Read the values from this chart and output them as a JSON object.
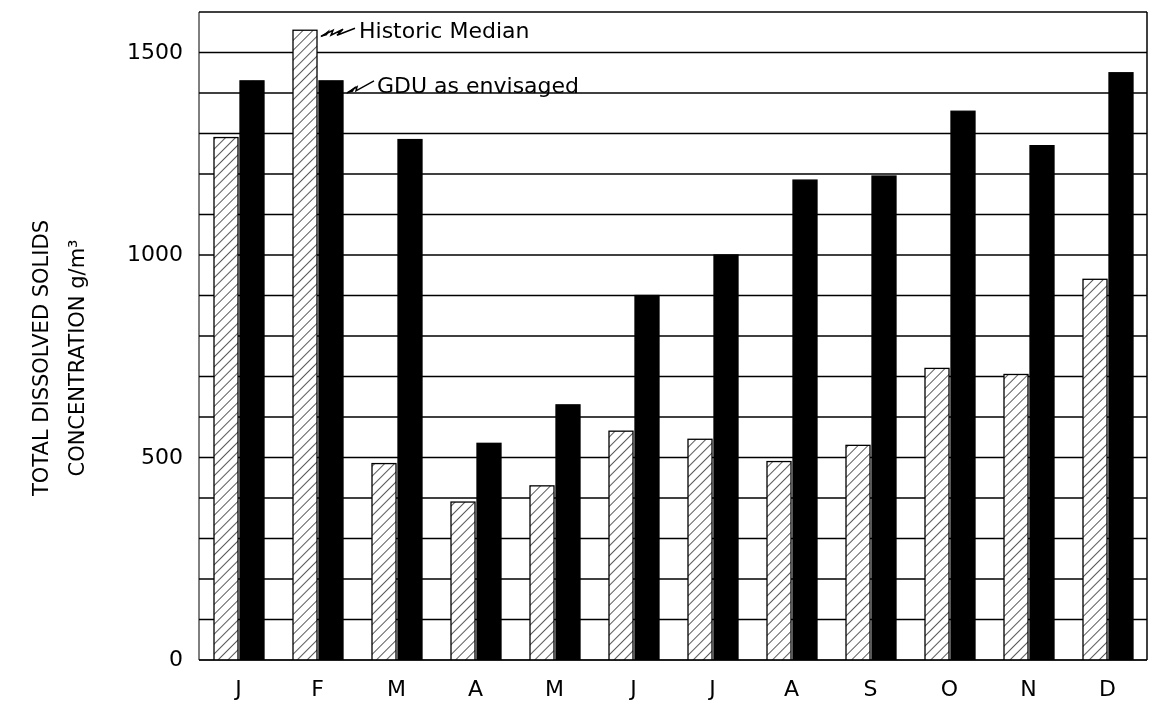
{
  "chart_data": {
    "type": "bar",
    "ylabel": "TOTAL DISSOLVED SOLIDS\nCONCENTRATION   g/m³",
    "categories": [
      "J",
      "F",
      "M",
      "A",
      "M",
      "J",
      "J",
      "A",
      "S",
      "O",
      "N",
      "D"
    ],
    "series": [
      {
        "name": "Historic Median",
        "color": "#ffffff",
        "values": [
          1290,
          1555,
          485,
          390,
          430,
          565,
          545,
          490,
          530,
          720,
          705,
          940
        ]
      },
      {
        "name": "GDU as envisaged",
        "color": "#000000",
        "values": [
          1430,
          1430,
          1285,
          535,
          630,
          900,
          1000,
          1185,
          1195,
          1355,
          1270,
          1450
        ]
      }
    ],
    "ylim": [
      0,
      1600
    ],
    "yticks": [
      0,
      {
        "value": 100,
        "label": null
      },
      {
        "value": 200,
        "label": null
      },
      {
        "value": 300,
        "label": null
      },
      {
        "value": 400,
        "label": null
      },
      500,
      {
        "value": 600,
        "label": null
      },
      {
        "value": 700,
        "label": null
      },
      {
        "value": 800,
        "label": null
      },
      {
        "value": 900,
        "label": null
      },
      1000,
      {
        "value": 1100,
        "label": null
      },
      {
        "value": 1200,
        "label": null
      },
      {
        "value": 1300,
        "label": null
      },
      {
        "value": 1400,
        "label": null
      },
      1500,
      {
        "value": 1600,
        "label": null
      }
    ],
    "grid": "y",
    "legend": "top left"
  }
}
